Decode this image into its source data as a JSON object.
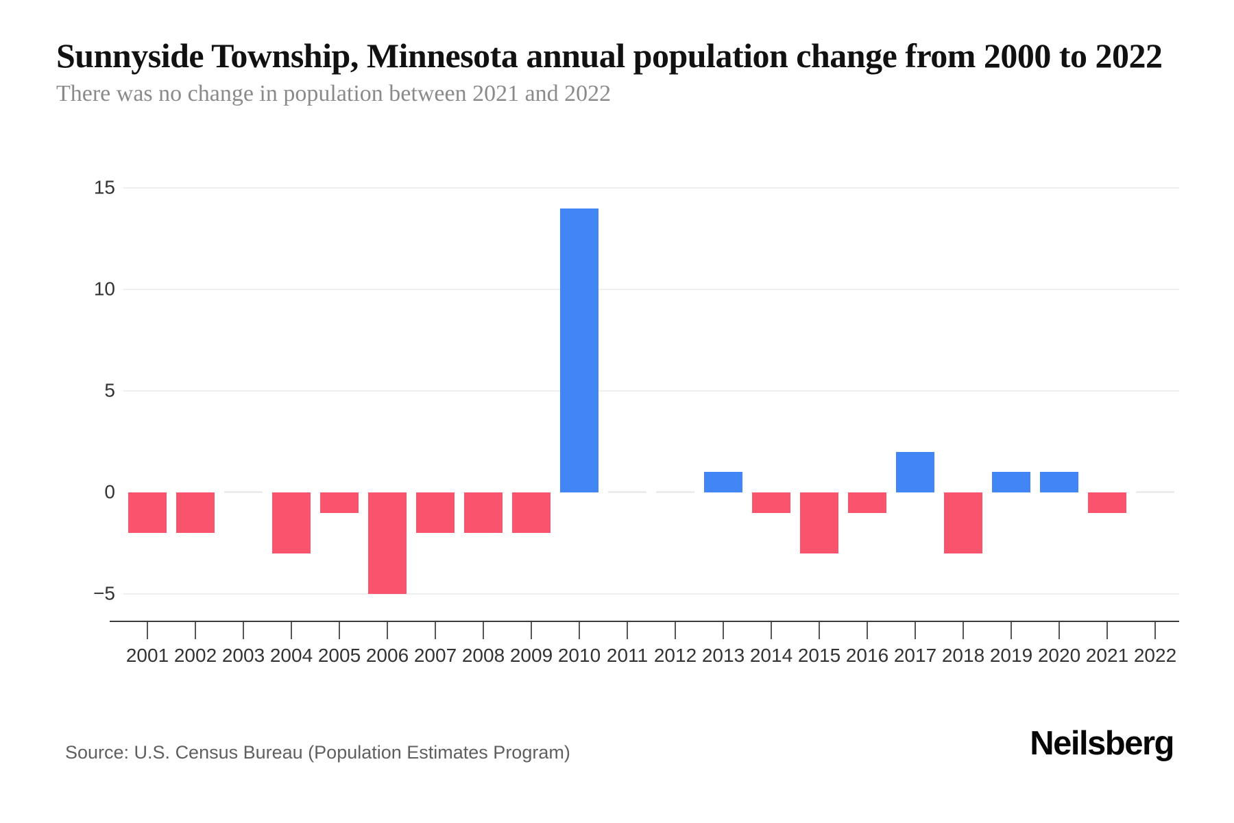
{
  "header": {
    "title": "Sunnyside Township, Minnesota annual population change from 2000 to 2022",
    "subtitle": "There was no change in population between 2021 and 2022"
  },
  "footer": {
    "source": "Source: U.S. Census Bureau (Population Estimates Program)",
    "brand": "Neilsberg"
  },
  "chart_data": {
    "type": "bar",
    "title": "Sunnyside Township, Minnesota annual population change from 2000 to 2022",
    "categories": [
      "2001",
      "2002",
      "2003",
      "2004",
      "2005",
      "2006",
      "2007",
      "2008",
      "2009",
      "2010",
      "2011",
      "2012",
      "2013",
      "2014",
      "2015",
      "2016",
      "2017",
      "2018",
      "2019",
      "2020",
      "2021",
      "2022"
    ],
    "values": [
      -2,
      -2,
      0,
      -3,
      -1,
      -5,
      -2,
      -2,
      -2,
      14,
      0,
      0,
      1,
      -1,
      -3,
      -1,
      2,
      -3,
      1,
      1,
      -1,
      0
    ],
    "xlabel": "",
    "ylabel": "",
    "yticks": [
      -5,
      0,
      5,
      10,
      15
    ],
    "ylim": [
      -5,
      15
    ],
    "grid": true,
    "legend": false,
    "colors": {
      "positive": "#4285F4",
      "negative": "#F9536E",
      "zero": "#ececec",
      "gridline": "#efefef",
      "axis": "#3a3a3a"
    }
  }
}
